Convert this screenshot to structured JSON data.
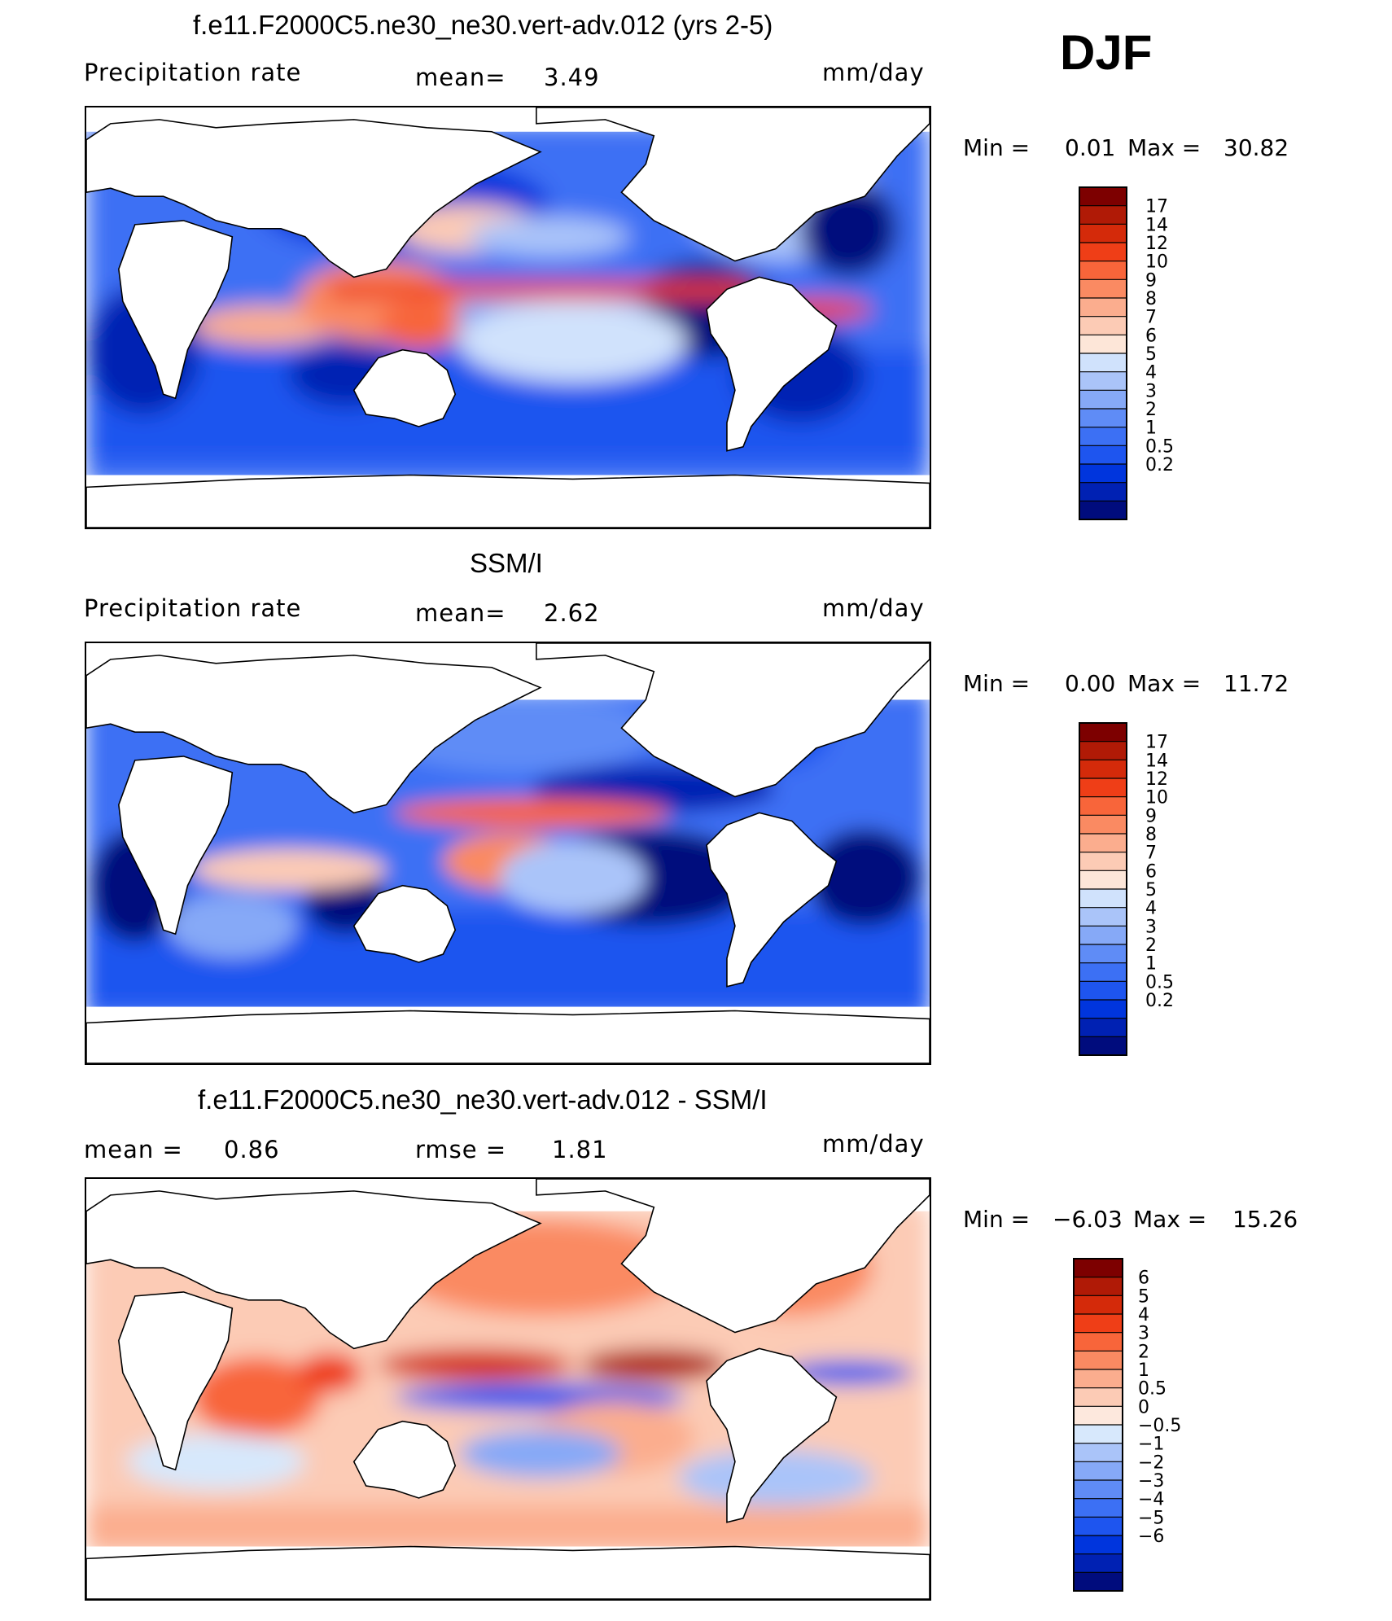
{
  "season": "DJF",
  "colors": {
    "abs_scale": [
      "#000c7d",
      "#0021b3",
      "#0035dd",
      "#1e55ef",
      "#3c70f4",
      "#5f8cf6",
      "#86a9f7",
      "#aac4f9",
      "#d0e2fc",
      "#fde6d8",
      "#fccbb5",
      "#fbad8e",
      "#fa8a62",
      "#f8653a",
      "#ef3e17",
      "#d42a0a",
      "#b01a06",
      "#7d0000"
    ],
    "diff_scale": [
      "#000c7d",
      "#0021b3",
      "#0035dd",
      "#1e55ef",
      "#3c70f4",
      "#5f8cf6",
      "#86a9f7",
      "#aac4f9",
      "#d7e8fc",
      "#fde8dd",
      "#fccbb5",
      "#fbad8e",
      "#fa8a62",
      "#f8653a",
      "#ef3e17",
      "#d42a0a",
      "#b01a06",
      "#7d0000"
    ],
    "land": "#ffffff",
    "coast": "#000000"
  },
  "panels": [
    {
      "title": "f.e11.F2000C5.ne30_ne30.vert-adv.012 (yrs 2-5)",
      "left_label": "Precipitation  rate",
      "mid_label": "mean=",
      "mid_value": "3.49",
      "units": "mm/day",
      "min_label": "Min  =",
      "min_value": "0.01",
      "max_label": "Max  =",
      "max_value": "30.82",
      "colorbar_labels": [
        "17",
        "14",
        "12",
        "10",
        "9",
        "8",
        "7",
        "6",
        "5",
        "4",
        "3",
        "2",
        "1",
        "0.5",
        "0.2"
      ]
    },
    {
      "title": "SSM/I",
      "left_label": "Precipitation  rate",
      "mid_label": "mean=",
      "mid_value": "2.62",
      "units": "mm/day",
      "min_label": "Min  =",
      "min_value": "0.00",
      "max_label": "Max  =",
      "max_value": "11.72",
      "colorbar_labels": [
        "17",
        "14",
        "12",
        "10",
        "9",
        "8",
        "7",
        "6",
        "5",
        "4",
        "3",
        "2",
        "1",
        "0.5",
        "0.2"
      ]
    },
    {
      "title": "f.e11.F2000C5.ne30_ne30.vert-adv.012 - SSM/I",
      "left_label": "mean  =",
      "left_value": "0.86",
      "mid_label": "rmse  =",
      "mid_value": "1.81",
      "units": "mm/day",
      "min_label": "Min  =",
      "min_value": "−6.03",
      "max_label": "Max  =",
      "max_value": "15.26",
      "colorbar_labels": [
        "6",
        "5",
        "4",
        "3",
        "2",
        "1",
        "0.5",
        "0",
        "−0.5",
        "−1",
        "−2",
        "−3",
        "−4",
        "−5",
        "−6"
      ]
    }
  ]
}
